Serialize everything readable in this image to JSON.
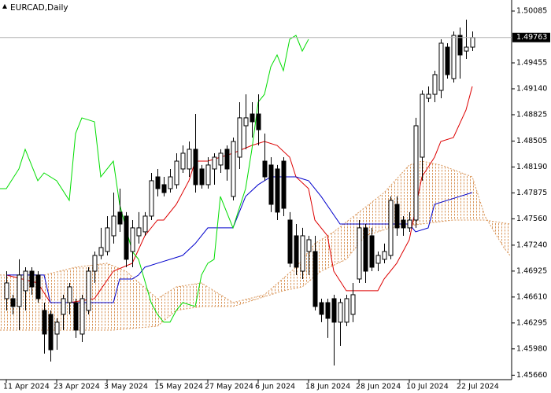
{
  "chart_data": {
    "type": "candlestick",
    "title": "EURCAD,Daily",
    "categories": [
      "11 Apr 2024",
      null,
      null,
      null,
      null,
      null,
      null,
      null,
      "23 Apr 2024",
      null,
      null,
      null,
      null,
      null,
      null,
      null,
      "3 May 2024",
      null,
      null,
      null,
      null,
      null,
      null,
      null,
      "15 May 2024",
      null,
      null,
      null,
      null,
      null,
      null,
      null,
      "27 May 2024",
      null,
      null,
      null,
      null,
      null,
      null,
      null,
      "6 Jun 2024",
      null,
      null,
      null,
      null,
      null,
      null,
      null,
      "18 Jun 2024",
      null,
      null,
      null,
      null,
      null,
      null,
      null,
      "28 Jun 2024",
      null,
      null,
      null,
      null,
      null,
      null,
      null,
      "10 Jul 2024",
      null,
      null,
      null,
      null,
      null,
      null,
      null,
      "22 Jul 2024",
      null,
      null
    ],
    "open": [
      1.4659,
      1.4659,
      1.46495,
      1.46686,
      1.46924,
      1.46877,
      1.46447,
      1.46399,
      1.4616,
      1.46399,
      1.46542,
      1.46542,
      1.4616,
      1.46447,
      1.46924,
      1.47115,
      1.47163,
      1.47354,
      1.47641,
      1.47593,
      1.47163,
      1.47354,
      1.47402,
      1.47593,
      1.4807,
      1.47975,
      1.47927,
      1.47975,
      1.48166,
      1.48166,
      1.48405,
      1.48166,
      1.47975,
      1.48166,
      1.48214,
      1.48405,
      1.47832,
      1.48309,
      1.48691,
      1.48834,
      1.48834,
      1.48261,
      1.48214,
      1.48166,
      1.48261,
      1.47545,
      1.47354,
      1.46924,
      1.47163,
      1.47163,
      1.46542,
      1.46542,
      1.4659,
      1.46304,
      1.46304,
      1.46399,
      1.46829,
      1.4745,
      1.47354,
      1.4702,
      1.47068,
      1.47115,
      1.47736,
      1.47545,
      1.4745,
      1.47545,
      1.48309,
      1.49025,
      1.49073,
      1.49121,
      1.49646,
      1.49264,
      1.49789,
      1.49598,
      1.49646
    ],
    "high": [
      1.46924,
      1.46638,
      1.47068,
      1.46972,
      1.46972,
      1.46924,
      1.46542,
      1.46447,
      1.46351,
      1.46638,
      1.46781,
      1.4659,
      1.46638,
      1.46972,
      1.47163,
      1.4745,
      1.47593,
      1.47879,
      1.47927,
      1.47641,
      1.47545,
      1.47641,
      1.47641,
      1.48118,
      1.48166,
      1.4807,
      1.48166,
      1.48357,
      1.48452,
      1.485,
      1.48834,
      1.48214,
      1.48309,
      1.48357,
      1.48405,
      1.48452,
      1.48548,
      1.48978,
      1.49073,
      1.48978,
      1.49073,
      1.48596,
      1.48309,
      1.48214,
      1.48309,
      1.47641,
      1.47497,
      1.4745,
      1.47354,
      1.47354,
      1.4659,
      1.4659,
      1.46638,
      1.4659,
      1.46638,
      1.46781,
      1.47545,
      1.47497,
      1.4745,
      1.47163,
      1.47259,
      1.47832,
      1.47832,
      1.47593,
      1.47641,
      1.48787,
      1.49121,
      1.49169,
      1.4936,
      1.49742,
      1.49694,
      1.49837,
      1.49885,
      1.4998,
      1.49837
    ],
    "low": [
      1.46447,
      1.46399,
      1.46208,
      1.46447,
      1.46638,
      1.46542,
      1.45922,
      1.45826,
      1.45969,
      1.46208,
      1.46399,
      1.46113,
      1.46065,
      1.46399,
      1.46781,
      1.47068,
      1.47115,
      1.47259,
      1.47402,
      1.46972,
      1.46972,
      1.47259,
      1.47354,
      1.47545,
      1.47832,
      1.47832,
      1.47879,
      1.47927,
      1.48118,
      1.4807,
      1.47879,
      1.47927,
      1.47927,
      1.47975,
      1.48118,
      1.48023,
      1.47784,
      1.48166,
      1.48405,
      1.48548,
      1.48452,
      1.48023,
      1.47641,
      1.47545,
      1.47593,
      1.46972,
      1.46877,
      1.46829,
      1.46877,
      1.46447,
      1.46304,
      1.46113,
      1.45778,
      1.46017,
      1.46256,
      1.46304,
      1.46781,
      1.46781,
      1.46924,
      1.46924,
      1.4702,
      1.47068,
      1.47354,
      1.47354,
      1.47402,
      1.4745,
      1.48023,
      1.48978,
      1.48978,
      1.49025,
      1.49264,
      1.49216,
      1.49264,
      1.49503,
      1.49598
    ],
    "close": [
      1.46781,
      1.46495,
      1.46877,
      1.46924,
      1.46733,
      1.4659,
      1.4616,
      1.45969,
      1.46304,
      1.4659,
      1.46733,
      1.46208,
      1.4659,
      1.46924,
      1.47115,
      1.47211,
      1.4745,
      1.47593,
      1.47497,
      1.47068,
      1.4745,
      1.4745,
      1.47593,
      1.48023,
      1.47927,
      1.47879,
      1.4807,
      1.48261,
      1.48357,
      1.48405,
      1.47975,
      1.47975,
      1.48214,
      1.48309,
      1.48357,
      1.48166,
      1.485,
      1.48787,
      1.48787,
      1.48739,
      1.48643,
      1.4807,
      1.47736,
      1.47641,
      1.47688,
      1.4702,
      1.46972,
      1.47354,
      1.47306,
      1.46495,
      1.46399,
      1.46351,
      1.46304,
      1.46542,
      1.4659,
      1.46638,
      1.4745,
      1.46924,
      1.46972,
      1.47115,
      1.47163,
      1.47784,
      1.4745,
      1.4745,
      1.47545,
      1.48691,
      1.49073,
      1.49073,
      1.49312,
      1.49694,
      1.49312,
      1.49789,
      1.49551,
      1.49646,
      1.49763
    ],
    "up_color": "#ffffff",
    "down_color": "#000000",
    "last_price": 1.49763,
    "ylim": [
      1.45606,
      1.50219
    ],
    "yticks": [
      1.50085,
      1.49455,
      {
        "value": 1.4914,
        "label": "1.49140"
      },
      1.48825,
      1.48505,
      {
        "value": 1.4819,
        "label": "1.48190"
      },
      1.47875,
      {
        "value": 1.4756,
        "label": "1.47560"
      },
      {
        "value": 1.4724,
        "label": "1.47240"
      },
      1.46925,
      {
        "value": 1.4661,
        "label": "1.46610"
      },
      1.46295,
      {
        "value": 1.4598,
        "label": "1.45980"
      },
      {
        "value": 1.4566,
        "label": "1.45660"
      }
    ],
    "xlim": [
      -1,
      80
    ],
    "lines": [
      {
        "color": "#dd0000",
        "x": [
          0,
          5,
          7,
          10,
          14,
          17,
          20,
          22,
          24,
          25,
          27,
          29,
          30,
          32,
          34,
          36,
          39,
          41,
          43,
          45,
          46,
          48,
          49,
          51,
          52,
          54,
          56,
          59,
          60,
          62,
          64,
          65,
          66,
          68,
          69,
          71,
          73,
          74
        ],
        "values": [
          1.46877,
          1.46781,
          1.46542,
          1.46542,
          1.4659,
          1.46924,
          1.4702,
          1.47354,
          1.47545,
          1.47545,
          1.47736,
          1.48023,
          1.48261,
          1.48261,
          1.48309,
          1.48357,
          1.48452,
          1.485,
          1.48452,
          1.48309,
          1.4807,
          1.47927,
          1.47545,
          1.47354,
          1.46924,
          1.46686,
          1.46686,
          1.46686,
          1.46829,
          1.4702,
          1.47306,
          1.47688,
          1.4807,
          1.48309,
          1.485,
          1.48548,
          1.48882,
          1.49169
        ]
      },
      {
        "color": "#0000cc",
        "x": [
          0,
          6,
          7,
          17,
          18,
          20,
          21,
          22,
          24,
          28,
          30,
          32,
          33,
          36,
          38,
          40,
          42,
          46,
          48,
          50,
          53,
          64,
          65,
          67,
          68,
          70,
          72,
          74
        ],
        "values": [
          1.46877,
          1.46877,
          1.46542,
          1.46542,
          1.46829,
          1.46829,
          1.46877,
          1.46972,
          1.4702,
          1.47115,
          1.47259,
          1.4745,
          1.4745,
          1.4745,
          1.47832,
          1.47975,
          1.4807,
          1.4807,
          1.48023,
          1.47832,
          1.47497,
          1.47497,
          1.47402,
          1.4745,
          1.47736,
          1.47784,
          1.47832,
          1.47879
        ]
      },
      {
        "color": "#00dd00",
        "x": [
          -1,
          0,
          2,
          3,
          5,
          6,
          8,
          10,
          11,
          12,
          14,
          15,
          17,
          18,
          20,
          21,
          23,
          24,
          25,
          26,
          27,
          28,
          30,
          31,
          32,
          33,
          34,
          35,
          36,
          38,
          39,
          40,
          41,
          42,
          43,
          44,
          45,
          46,
          47,
          48
        ],
        "values": [
          1.47927,
          1.47927,
          1.48166,
          1.48405,
          1.48023,
          1.48118,
          1.48023,
          1.47784,
          1.48596,
          1.48787,
          1.48739,
          1.4807,
          1.48261,
          1.47736,
          1.47163,
          1.47068,
          1.46542,
          1.46399,
          1.46304,
          1.46304,
          1.46447,
          1.46542,
          1.46495,
          1.46877,
          1.4702,
          1.47068,
          1.47832,
          1.47641,
          1.4745,
          1.47927,
          1.48405,
          1.48978,
          1.49073,
          1.49407,
          1.49551,
          1.4936,
          1.49742,
          1.49789,
          1.49598,
          1.49742
        ]
      }
    ],
    "cloud": {
      "color": "#d9965a",
      "upper": {
        "x": [
          -1,
          6,
          11,
          16,
          19,
          24,
          27,
          31,
          36,
          41,
          46,
          49,
          52,
          56,
          60,
          64,
          66,
          69,
          74,
          76,
          79,
          80
        ],
        "values": [
          1.46877,
          1.46877,
          1.46972,
          1.4702,
          1.46924,
          1.4659,
          1.46733,
          1.46781,
          1.46542,
          1.46638,
          1.46972,
          1.47259,
          1.47402,
          1.47641,
          1.47879,
          1.48214,
          1.48261,
          1.48214,
          1.4807,
          1.47593,
          1.47211,
          1.47115
        ]
      },
      "lower": {
        "x": [
          -1,
          17,
          24,
          27,
          31,
          36,
          40,
          44,
          47,
          50,
          54,
          57,
          61,
          66,
          71,
          76,
          80
        ],
        "values": [
          1.46208,
          1.46208,
          1.46256,
          1.46447,
          1.46495,
          1.46495,
          1.4659,
          1.46686,
          1.46733,
          1.46924,
          1.47068,
          1.47354,
          1.4745,
          1.47497,
          1.47545,
          1.47545,
          1.47497
        ]
      }
    }
  }
}
